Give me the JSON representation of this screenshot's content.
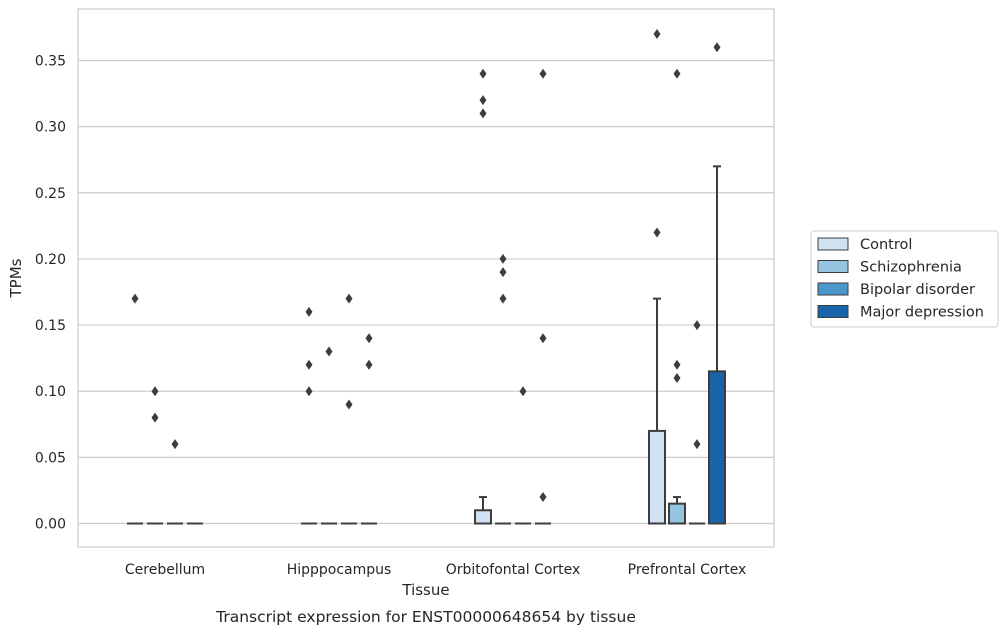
{
  "chart_data": {
    "type": "box",
    "xlabel": "Tissue",
    "ylabel": "TPMs",
    "caption": "Transcript expression for ENST00000648654 by tissue",
    "ylim": [
      -0.018,
      0.389
    ],
    "yticks": [
      "0.00",
      "0.05",
      "0.10",
      "0.15",
      "0.20",
      "0.25",
      "0.30",
      "0.35"
    ],
    "grid": "horizontal",
    "legend_position": "right",
    "categories": [
      "Cerebellum",
      "Hipppocampus",
      "Orbitofontal Cortex",
      "Prefrontal Cortex"
    ],
    "series": [
      {
        "name": "Control",
        "color": "#d0e1f2",
        "boxes": [
          {
            "q1": 0,
            "median": 0,
            "q3": 0,
            "whislo": 0,
            "whishi": 0,
            "fliers": [
              0.17
            ]
          },
          {
            "q1": 0,
            "median": 0,
            "q3": 0,
            "whislo": 0,
            "whishi": 0,
            "fliers": [
              0.16,
              0.12,
              0.1
            ]
          },
          {
            "q1": 0,
            "median": 0,
            "q3": 0.01,
            "whislo": 0,
            "whishi": 0.02,
            "fliers": [
              0.34,
              0.32,
              0.31
            ]
          },
          {
            "q1": 0,
            "median": 0,
            "q3": 0.07,
            "whislo": 0,
            "whishi": 0.17,
            "fliers": [
              0.37,
              0.22
            ]
          }
        ]
      },
      {
        "name": "Schizophrenia",
        "color": "#94c4df",
        "boxes": [
          {
            "q1": 0,
            "median": 0,
            "q3": 0,
            "whislo": 0,
            "whishi": 0,
            "fliers": [
              0.1,
              0.08
            ]
          },
          {
            "q1": 0,
            "median": 0,
            "q3": 0,
            "whislo": 0,
            "whishi": 0,
            "fliers": [
              0.13
            ]
          },
          {
            "q1": 0,
            "median": 0,
            "q3": 0,
            "whislo": 0,
            "whishi": 0,
            "fliers": [
              0.2,
              0.19,
              0.17
            ]
          },
          {
            "q1": 0,
            "median": 0,
            "q3": 0.015,
            "whislo": 0,
            "whishi": 0.02,
            "fliers": [
              0.34,
              0.12,
              0.11
            ]
          }
        ]
      },
      {
        "name": "Bipolar disorder",
        "color": "#4a98c9",
        "boxes": [
          {
            "q1": 0,
            "median": 0,
            "q3": 0,
            "whislo": 0,
            "whishi": 0,
            "fliers": [
              0.06
            ]
          },
          {
            "q1": 0,
            "median": 0,
            "q3": 0,
            "whislo": 0,
            "whishi": 0,
            "fliers": [
              0.17,
              0.09
            ]
          },
          {
            "q1": 0,
            "median": 0,
            "q3": 0,
            "whislo": 0,
            "whishi": 0,
            "fliers": [
              0.1
            ]
          },
          {
            "q1": 0,
            "median": 0,
            "q3": 0,
            "whislo": 0,
            "whishi": 0,
            "fliers": [
              0.15,
              0.06
            ]
          }
        ]
      },
      {
        "name": "Major depression",
        "color": "#1764ab",
        "boxes": [
          {
            "q1": 0,
            "median": 0,
            "q3": 0,
            "whislo": 0,
            "whishi": 0,
            "fliers": []
          },
          {
            "q1": 0,
            "median": 0,
            "q3": 0,
            "whislo": 0,
            "whishi": 0,
            "fliers": [
              0.14,
              0.12
            ]
          },
          {
            "q1": 0,
            "median": 0,
            "q3": 0,
            "whislo": 0,
            "whishi": 0,
            "fliers": [
              0.34,
              0.14,
              0.02
            ]
          },
          {
            "q1": 0,
            "median": 0,
            "q3": 0.115,
            "whislo": 0,
            "whishi": 0.27,
            "fliers": [
              0.36
            ]
          }
        ]
      }
    ]
  }
}
